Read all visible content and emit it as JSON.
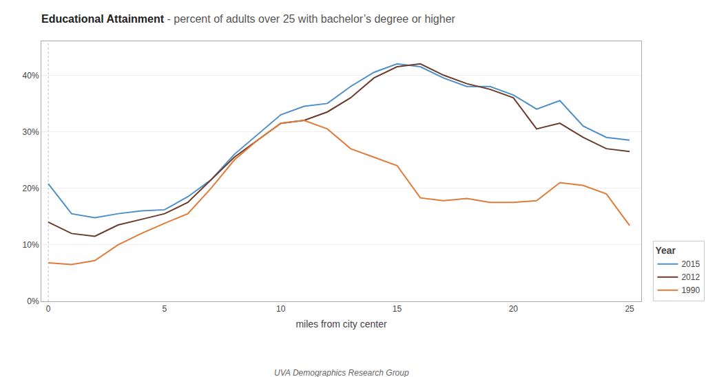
{
  "chart_data": {
    "type": "line",
    "title": "Educational Attainment",
    "subtitle": " - percent of adults over 25 with bachelor’s degree or higher",
    "xlabel": "miles from city center",
    "annotations": [
      "UVA Demographics Research Group"
    ],
    "legend_title": "Year",
    "legend": "lower right",
    "grid": true,
    "xlim": [
      -0.3,
      25.5
    ],
    "ylim": [
      0,
      0.46
    ],
    "xticks": [
      0,
      5,
      10,
      15,
      20,
      25
    ],
    "yticks": [
      {
        "value": 0.0,
        "label": "0%"
      },
      {
        "value": 0.1,
        "label": "10%"
      },
      {
        "value": 0.2,
        "label": "20%"
      },
      {
        "value": 0.3,
        "label": "30%"
      },
      {
        "value": 0.4,
        "label": "40%"
      }
    ],
    "x": [
      0,
      1,
      2,
      3,
      4,
      5,
      6,
      7,
      8,
      9,
      10,
      11,
      12,
      13,
      14,
      15,
      16,
      17,
      18,
      19,
      20,
      21,
      22,
      23,
      24,
      25
    ],
    "series": [
      {
        "name": "2015",
        "color": "#4e8ec9",
        "values": [
          0.208,
          0.155,
          0.148,
          0.155,
          0.16,
          0.162,
          0.185,
          0.215,
          0.26,
          0.295,
          0.33,
          0.345,
          0.35,
          0.38,
          0.405,
          0.42,
          0.415,
          0.395,
          0.38,
          0.38,
          0.365,
          0.34,
          0.355,
          0.31,
          0.29,
          0.285
        ]
      },
      {
        "name": "2012",
        "color": "#6b3a2a",
        "values": [
          0.14,
          0.12,
          0.115,
          0.135,
          0.145,
          0.155,
          0.175,
          0.215,
          0.255,
          0.285,
          0.315,
          0.32,
          0.335,
          0.36,
          0.395,
          0.415,
          0.42,
          0.4,
          0.385,
          0.375,
          0.36,
          0.305,
          0.315,
          0.29,
          0.27,
          0.265
        ]
      },
      {
        "name": "1990",
        "color": "#e07b39",
        "values": [
          0.068,
          0.065,
          0.072,
          0.1,
          0.12,
          0.138,
          0.155,
          0.2,
          0.25,
          0.285,
          0.315,
          0.32,
          0.305,
          0.27,
          0.255,
          0.24,
          0.183,
          0.178,
          0.182,
          0.175,
          0.175,
          0.178,
          0.21,
          0.205,
          0.19,
          0.134
        ]
      }
    ]
  }
}
